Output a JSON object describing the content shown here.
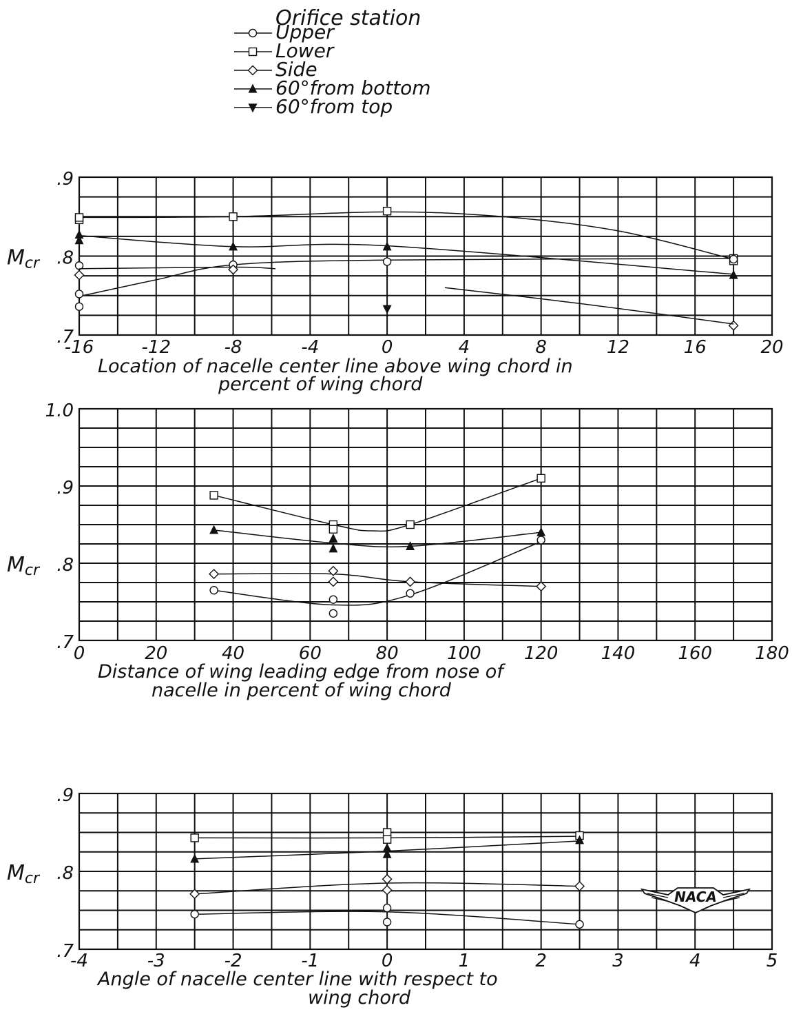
{
  "legend": {
    "title": "Orifice station",
    "entries": [
      {
        "label": "Upper",
        "marker": "circle"
      },
      {
        "label": "Lower",
        "marker": "square"
      },
      {
        "label": "Side",
        "marker": "diamond"
      },
      {
        "label": "60°from bottom",
        "marker": "triangle-up"
      },
      {
        "label": "60°from top",
        "marker": "triangle-down"
      }
    ]
  },
  "logo_text": "NACA",
  "chart_data": [
    {
      "type": "line",
      "xlabel_lines": [
        "Location of nacelle center line above wing chord in",
        "percent of wing chord"
      ],
      "ylabel": "Mcr",
      "xlim": [
        -16,
        20
      ],
      "ylim": [
        0.7,
        0.9
      ],
      "xticks": [
        -16,
        -12,
        -8,
        -4,
        0,
        4,
        8,
        12,
        16,
        20
      ],
      "xtick_labels": [
        "-16",
        "-12",
        "-8",
        "-4",
        "0",
        "4",
        "8",
        "12",
        "16",
        "20"
      ],
      "yticks": [
        0.7,
        0.8,
        0.9
      ],
      "ytick_labels": [
        ".7",
        ".8",
        ".9"
      ],
      "grid": true,
      "series": [
        {
          "marker": "square",
          "points": [
            [
              -16,
              0.846
            ],
            [
              -16,
              0.849
            ],
            [
              -8,
              0.85
            ],
            [
              0,
              0.857
            ],
            [
              18,
              0.797
            ],
            [
              18,
              0.794
            ]
          ],
          "curve": [
            [
              -16,
              0.849
            ],
            [
              -8,
              0.85
            ],
            [
              0,
              0.856
            ],
            [
              6,
              0.85
            ],
            [
              12,
              0.832
            ],
            [
              18,
              0.796
            ]
          ]
        },
        {
          "marker": "circle",
          "points": [
            [
              -16,
              0.736
            ],
            [
              -16,
              0.752
            ],
            [
              -16,
              0.788
            ],
            [
              -8,
              0.789
            ],
            [
              0,
              0.793
            ],
            [
              18,
              0.796
            ]
          ],
          "curve": [
            [
              -16,
              0.749
            ],
            [
              -12,
              0.77
            ],
            [
              -8,
              0.789
            ],
            [
              0,
              0.795
            ],
            [
              18,
              0.797
            ]
          ]
        },
        {
          "marker": "diamond",
          "points": [
            [
              -16,
              0.776
            ],
            [
              -8,
              0.783
            ],
            [
              18,
              0.712
            ]
          ],
          "curve": [
            [
              -16,
              0.784
            ],
            [
              -8,
              0.786
            ],
            [
              -5.8,
              0.784
            ]
          ]
        },
        {
          "marker": "diamond",
          "points": [],
          "curve": [
            [
              3,
              0.76
            ],
            [
              10,
              0.74
            ],
            [
              18,
              0.714
            ]
          ]
        },
        {
          "marker": "triangle-up",
          "points": [
            [
              -16,
              0.82
            ],
            [
              -16,
              0.827
            ],
            [
              -8,
              0.812
            ],
            [
              0,
              0.812
            ],
            [
              18,
              0.776
            ]
          ],
          "curve": [
            [
              -16,
              0.826
            ],
            [
              -8,
              0.812
            ],
            [
              0,
              0.813
            ],
            [
              18,
              0.777
            ]
          ]
        },
        {
          "marker": "triangle-down",
          "points": [
            [
              0,
              0.733
            ]
          ],
          "curve": []
        }
      ]
    },
    {
      "type": "line",
      "xlabel_lines": [
        "Distance of wing leading edge from nose of",
        "nacelle in percent of wing chord"
      ],
      "ylabel": "Mcr",
      "xlim": [
        0,
        180
      ],
      "ylim": [
        0.7,
        1.0
      ],
      "xticks": [
        0,
        20,
        40,
        60,
        80,
        100,
        120,
        140,
        160,
        180
      ],
      "xtick_labels": [
        "0",
        "20",
        "40",
        "60",
        "80",
        "100",
        "120",
        "140",
        "160",
        "180"
      ],
      "yticks": [
        0.7,
        0.8,
        0.9,
        1.0
      ],
      "ytick_labels": [
        ".7",
        ".8",
        ".9",
        "1.0"
      ],
      "grid": true,
      "series": [
        {
          "marker": "square",
          "points": [
            [
              35,
              0.888
            ],
            [
              66,
              0.85
            ],
            [
              66,
              0.844
            ],
            [
              86,
              0.85
            ],
            [
              120,
              0.91
            ]
          ],
          "curve": [
            [
              35,
              0.888
            ],
            [
              66,
              0.85
            ],
            [
              76,
              0.842
            ],
            [
              86,
              0.85
            ],
            [
              120,
              0.91
            ]
          ]
        },
        {
          "marker": "triangle-up",
          "points": [
            [
              35,
              0.843
            ],
            [
              66,
              0.832
            ],
            [
              66,
              0.819
            ],
            [
              86,
              0.822
            ],
            [
              120,
              0.84
            ]
          ],
          "curve": [
            [
              35,
              0.843
            ],
            [
              66,
              0.826
            ],
            [
              86,
              0.822
            ],
            [
              120,
              0.84
            ]
          ]
        },
        {
          "marker": "diamond",
          "points": [
            [
              35,
              0.786
            ],
            [
              66,
              0.79
            ],
            [
              66,
              0.776
            ],
            [
              86,
              0.776
            ],
            [
              120,
              0.77
            ]
          ],
          "curve": [
            [
              35,
              0.786
            ],
            [
              66,
              0.786
            ],
            [
              86,
              0.776
            ],
            [
              120,
              0.77
            ]
          ]
        },
        {
          "marker": "circle",
          "points": [
            [
              35,
              0.765
            ],
            [
              66,
              0.753
            ],
            [
              66,
              0.735
            ],
            [
              86,
              0.761
            ],
            [
              120,
              0.83
            ]
          ],
          "curve": [
            [
              35,
              0.765
            ],
            [
              66,
              0.746
            ],
            [
              86,
              0.759
            ],
            [
              120,
              0.828
            ]
          ]
        }
      ]
    },
    {
      "type": "line",
      "xlabel_lines": [
        "Angle of nacelle center line with respect to",
        "wing chord"
      ],
      "ylabel": "Mcr",
      "xlim": [
        -4,
        5
      ],
      "ylim": [
        0.7,
        0.9
      ],
      "xticks": [
        -4,
        -3,
        -2,
        -1,
        0,
        1,
        2,
        3,
        4,
        5
      ],
      "xtick_labels": [
        "-4",
        "-3",
        "-2",
        "-1",
        "0",
        "1",
        "2",
        "3",
        "4",
        "5"
      ],
      "yticks": [
        0.7,
        0.8,
        0.9
      ],
      "ytick_labels": [
        ".7",
        ".8",
        ".9"
      ],
      "grid": true,
      "series": [
        {
          "marker": "square",
          "points": [
            [
              -2.5,
              0.843
            ],
            [
              0,
              0.85
            ],
            [
              0,
              0.841
            ],
            [
              2.5,
              0.846
            ]
          ],
          "curve": [
            [
              -2.5,
              0.843
            ],
            [
              0,
              0.843
            ],
            [
              2.5,
              0.845
            ]
          ]
        },
        {
          "marker": "triangle-up",
          "points": [
            [
              -2.5,
              0.816
            ],
            [
              0,
              0.83
            ],
            [
              0,
              0.822
            ],
            [
              2.5,
              0.84
            ]
          ],
          "curve": [
            [
              -2.5,
              0.816
            ],
            [
              0,
              0.826
            ],
            [
              2.5,
              0.839
            ]
          ]
        },
        {
          "marker": "diamond",
          "points": [
            [
              -2.5,
              0.771
            ],
            [
              0,
              0.79
            ],
            [
              0,
              0.776
            ],
            [
              2.5,
              0.781
            ]
          ],
          "curve": [
            [
              -2.5,
              0.771
            ],
            [
              0,
              0.785
            ],
            [
              2.5,
              0.781
            ]
          ]
        },
        {
          "marker": "circle",
          "points": [
            [
              -2.5,
              0.745
            ],
            [
              0,
              0.753
            ],
            [
              0,
              0.735
            ],
            [
              2.5,
              0.732
            ]
          ],
          "curve": [
            [
              -2.5,
              0.745
            ],
            [
              0,
              0.748
            ],
            [
              2.5,
              0.732
            ]
          ]
        }
      ]
    }
  ]
}
